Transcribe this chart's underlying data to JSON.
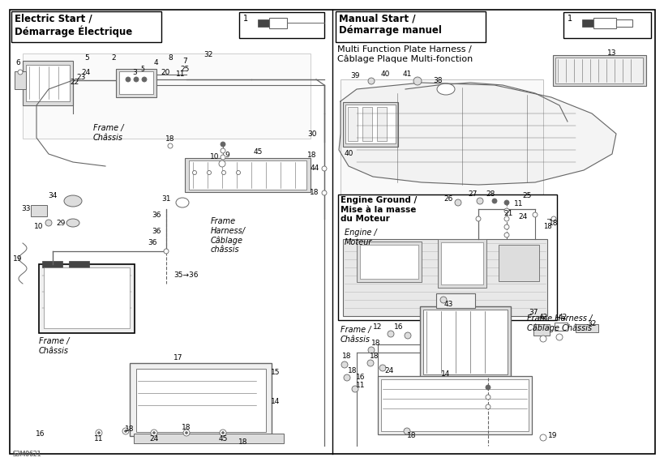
{
  "title_left": "Electric Start /\nDémarrage Électrique",
  "title_right": "Manual Start /\nDémarrage manuel",
  "subtitle_mfph": "Multi Function Plate Harness /\nCâblage Plaque Multi-fonction",
  "subtitle_engine": "Engine Ground /\nMise à la masse\ndu Moteur",
  "label_engine": "Engine /\nMoteur",
  "label_frame_chassis_left1": "Frame /\nChâssis",
  "label_frame_harness_left": "Frame\nHarness/\nCâblage\nchâssis",
  "label_frame_chassis_left2": "Frame /\nChâssis",
  "label_frame_chassis_right": "Frame /\nChâssis",
  "label_frame_harness_right": "Frame Harness /\nCâblage Châssis",
  "watermark": "S3M0621",
  "bg_color": "#FFFFFF",
  "border_color": "#000000",
  "line_color": "#666666",
  "gray_fill": "#DDDDDD",
  "dark_fill": "#444444",
  "light_fill": "#F0F0F0",
  "text_color": "#000000"
}
